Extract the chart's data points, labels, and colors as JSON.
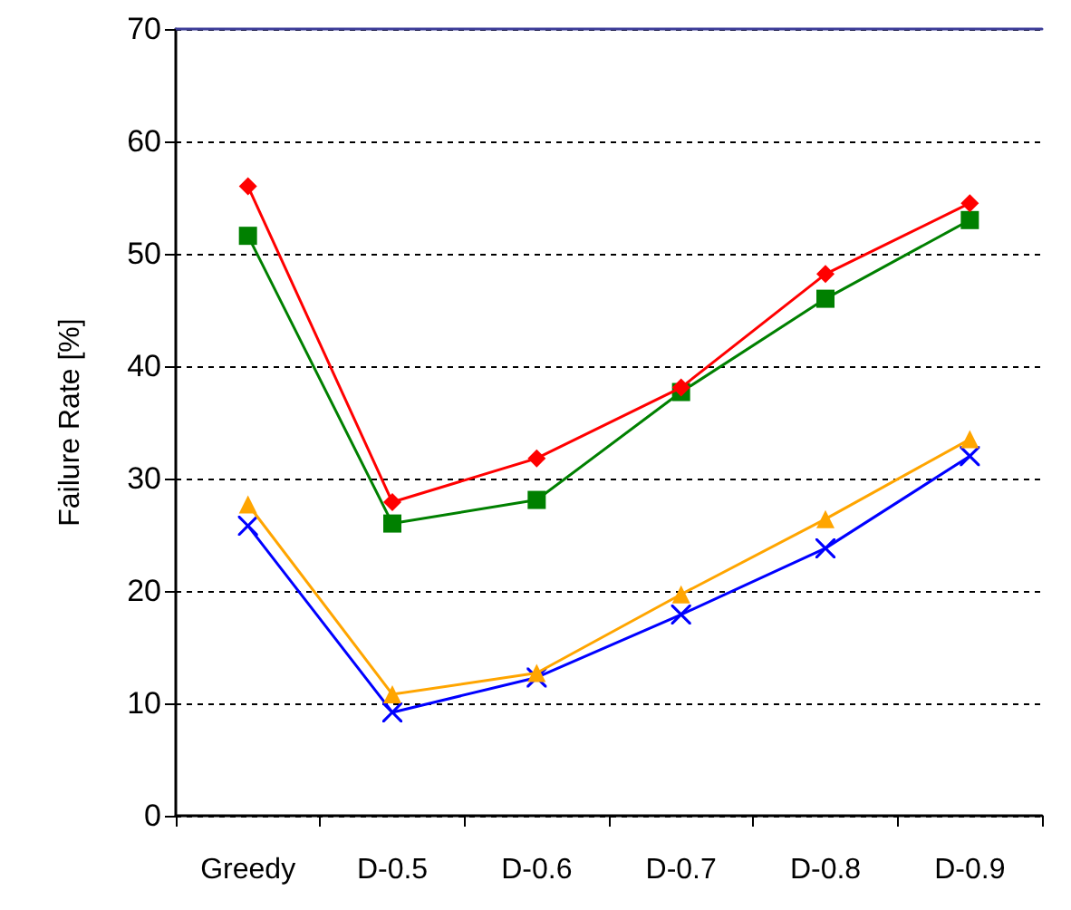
{
  "chart_data": {
    "type": "line",
    "ylabel": "Failure Rate [%]",
    "categories": [
      "Greedy",
      "D-0.5",
      "D-0.6",
      "D-0.7",
      "D-0.8",
      "D-0.9"
    ],
    "ylim": [
      0,
      70
    ],
    "yticks": [
      0,
      10,
      20,
      30,
      40,
      50,
      60,
      70
    ],
    "grid": "y",
    "line_style": "solid",
    "series": [
      {
        "color": "#ff0000",
        "marker": "diamond",
        "values": [
          56,
          27.9,
          31.8,
          38.1,
          48.2,
          54.5
        ]
      },
      {
        "color": "#008000",
        "marker": "square",
        "values": [
          51.6,
          26,
          28.1,
          37.7,
          46,
          53
        ]
      },
      {
        "color": "#ffa500",
        "marker": "triangle",
        "values": [
          27.7,
          10.8,
          12.7,
          19.7,
          26.4,
          33.5
        ]
      },
      {
        "color": "#0000ff",
        "marker": "cross",
        "values": [
          25.8,
          9.2,
          12.3,
          17.9,
          23.8,
          32
        ]
      }
    ]
  }
}
